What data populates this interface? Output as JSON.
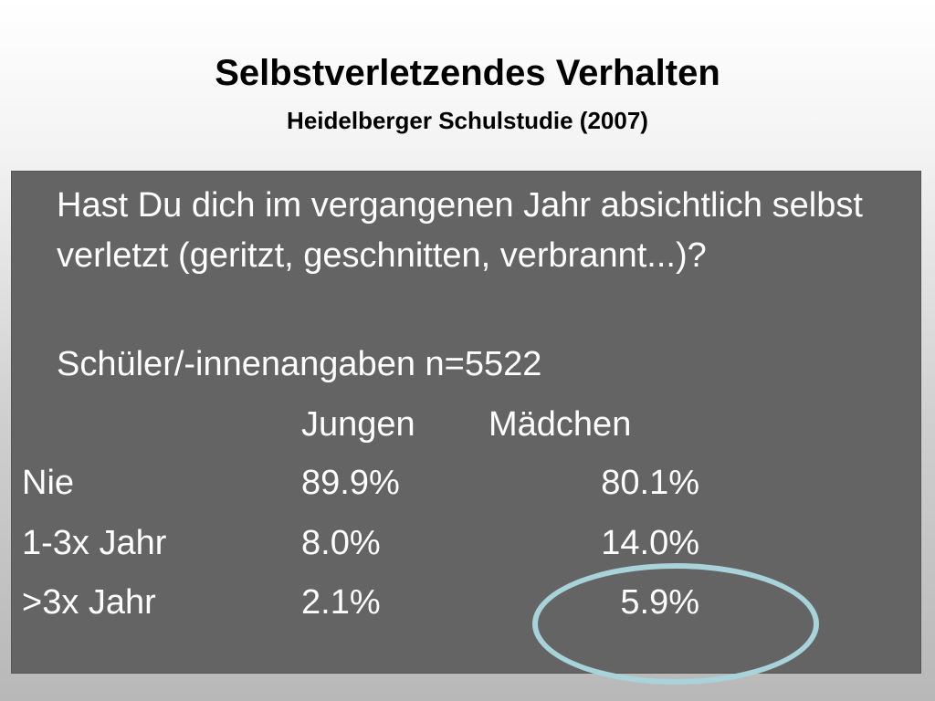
{
  "slide": {
    "title": "Selbstverletzendes Verhalten",
    "subtitle": "Heidelberger Schulstudie (2007)",
    "question": "Hast Du dich im vergangenen Jahr absichtlich selbst verletzt (geritzt, geschnitten, verbrannt...)?",
    "sample": "Schüler/-innenangaben n=5522"
  },
  "table": {
    "headers": [
      "Jungen",
      "Mädchen"
    ],
    "rows": [
      {
        "label": "Nie",
        "jungen": "89.9%",
        "maedchen": "80.1%"
      },
      {
        "label": "1-3x Jahr",
        "jungen": "8.0%",
        "maedchen": "14.0%"
      },
      {
        "label": ">3x Jahr",
        "jungen": "2.1%",
        "maedchen": "5.9%"
      }
    ]
  },
  "colors": {
    "panel": "#646464",
    "text": "#ffffff",
    "highlight_ring": "#a8d3db"
  }
}
